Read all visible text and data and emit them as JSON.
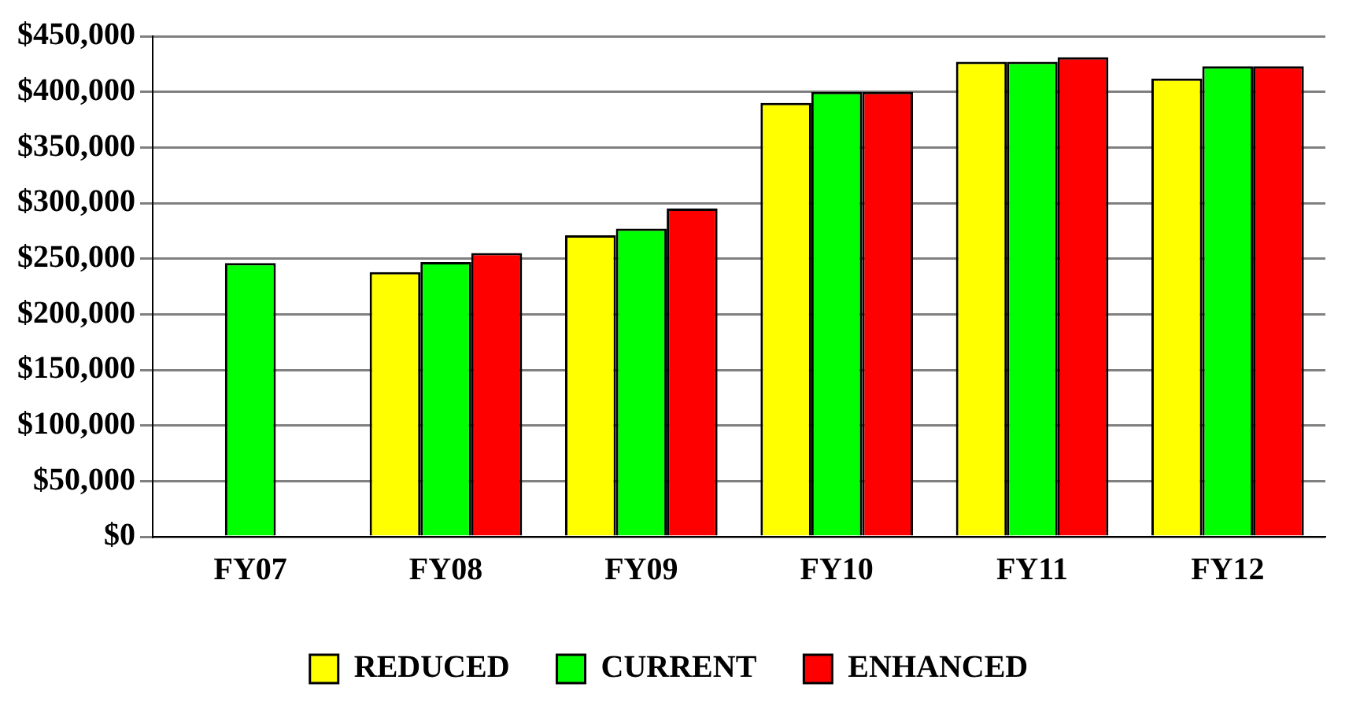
{
  "chart_data": {
    "type": "bar",
    "categories": [
      "FY07",
      "FY08",
      "FY09",
      "FY10",
      "FY11",
      "FY12"
    ],
    "series": [
      {
        "name": "REDUCED",
        "color": "#ffff00",
        "values": [
          null,
          238000,
          271000,
          390000,
          427000,
          412000
        ]
      },
      {
        "name": "CURRENT",
        "color": "#00ff00",
        "values": [
          246000,
          247000,
          277000,
          400000,
          427000,
          423000
        ]
      },
      {
        "name": "ENHANCED",
        "color": "#ff0000",
        "values": [
          null,
          255000,
          295000,
          400000,
          431000,
          423000
        ]
      }
    ],
    "ylim": [
      0,
      450000
    ],
    "yticks": [
      {
        "value": 0,
        "label": "$0"
      },
      {
        "value": 50000,
        "label": "$50,000"
      },
      {
        "value": 100000,
        "label": "$100,000"
      },
      {
        "value": 150000,
        "label": "$150,000"
      },
      {
        "value": 200000,
        "label": "$200,000"
      },
      {
        "value": 250000,
        "label": "$250,000"
      },
      {
        "value": 300000,
        "label": "$300,000"
      },
      {
        "value": 350000,
        "label": "$350,000"
      },
      {
        "value": 400000,
        "label": "$400,000"
      },
      {
        "value": 450000,
        "label": "$450,000"
      }
    ],
    "grid": "y",
    "legend": "bottom"
  }
}
